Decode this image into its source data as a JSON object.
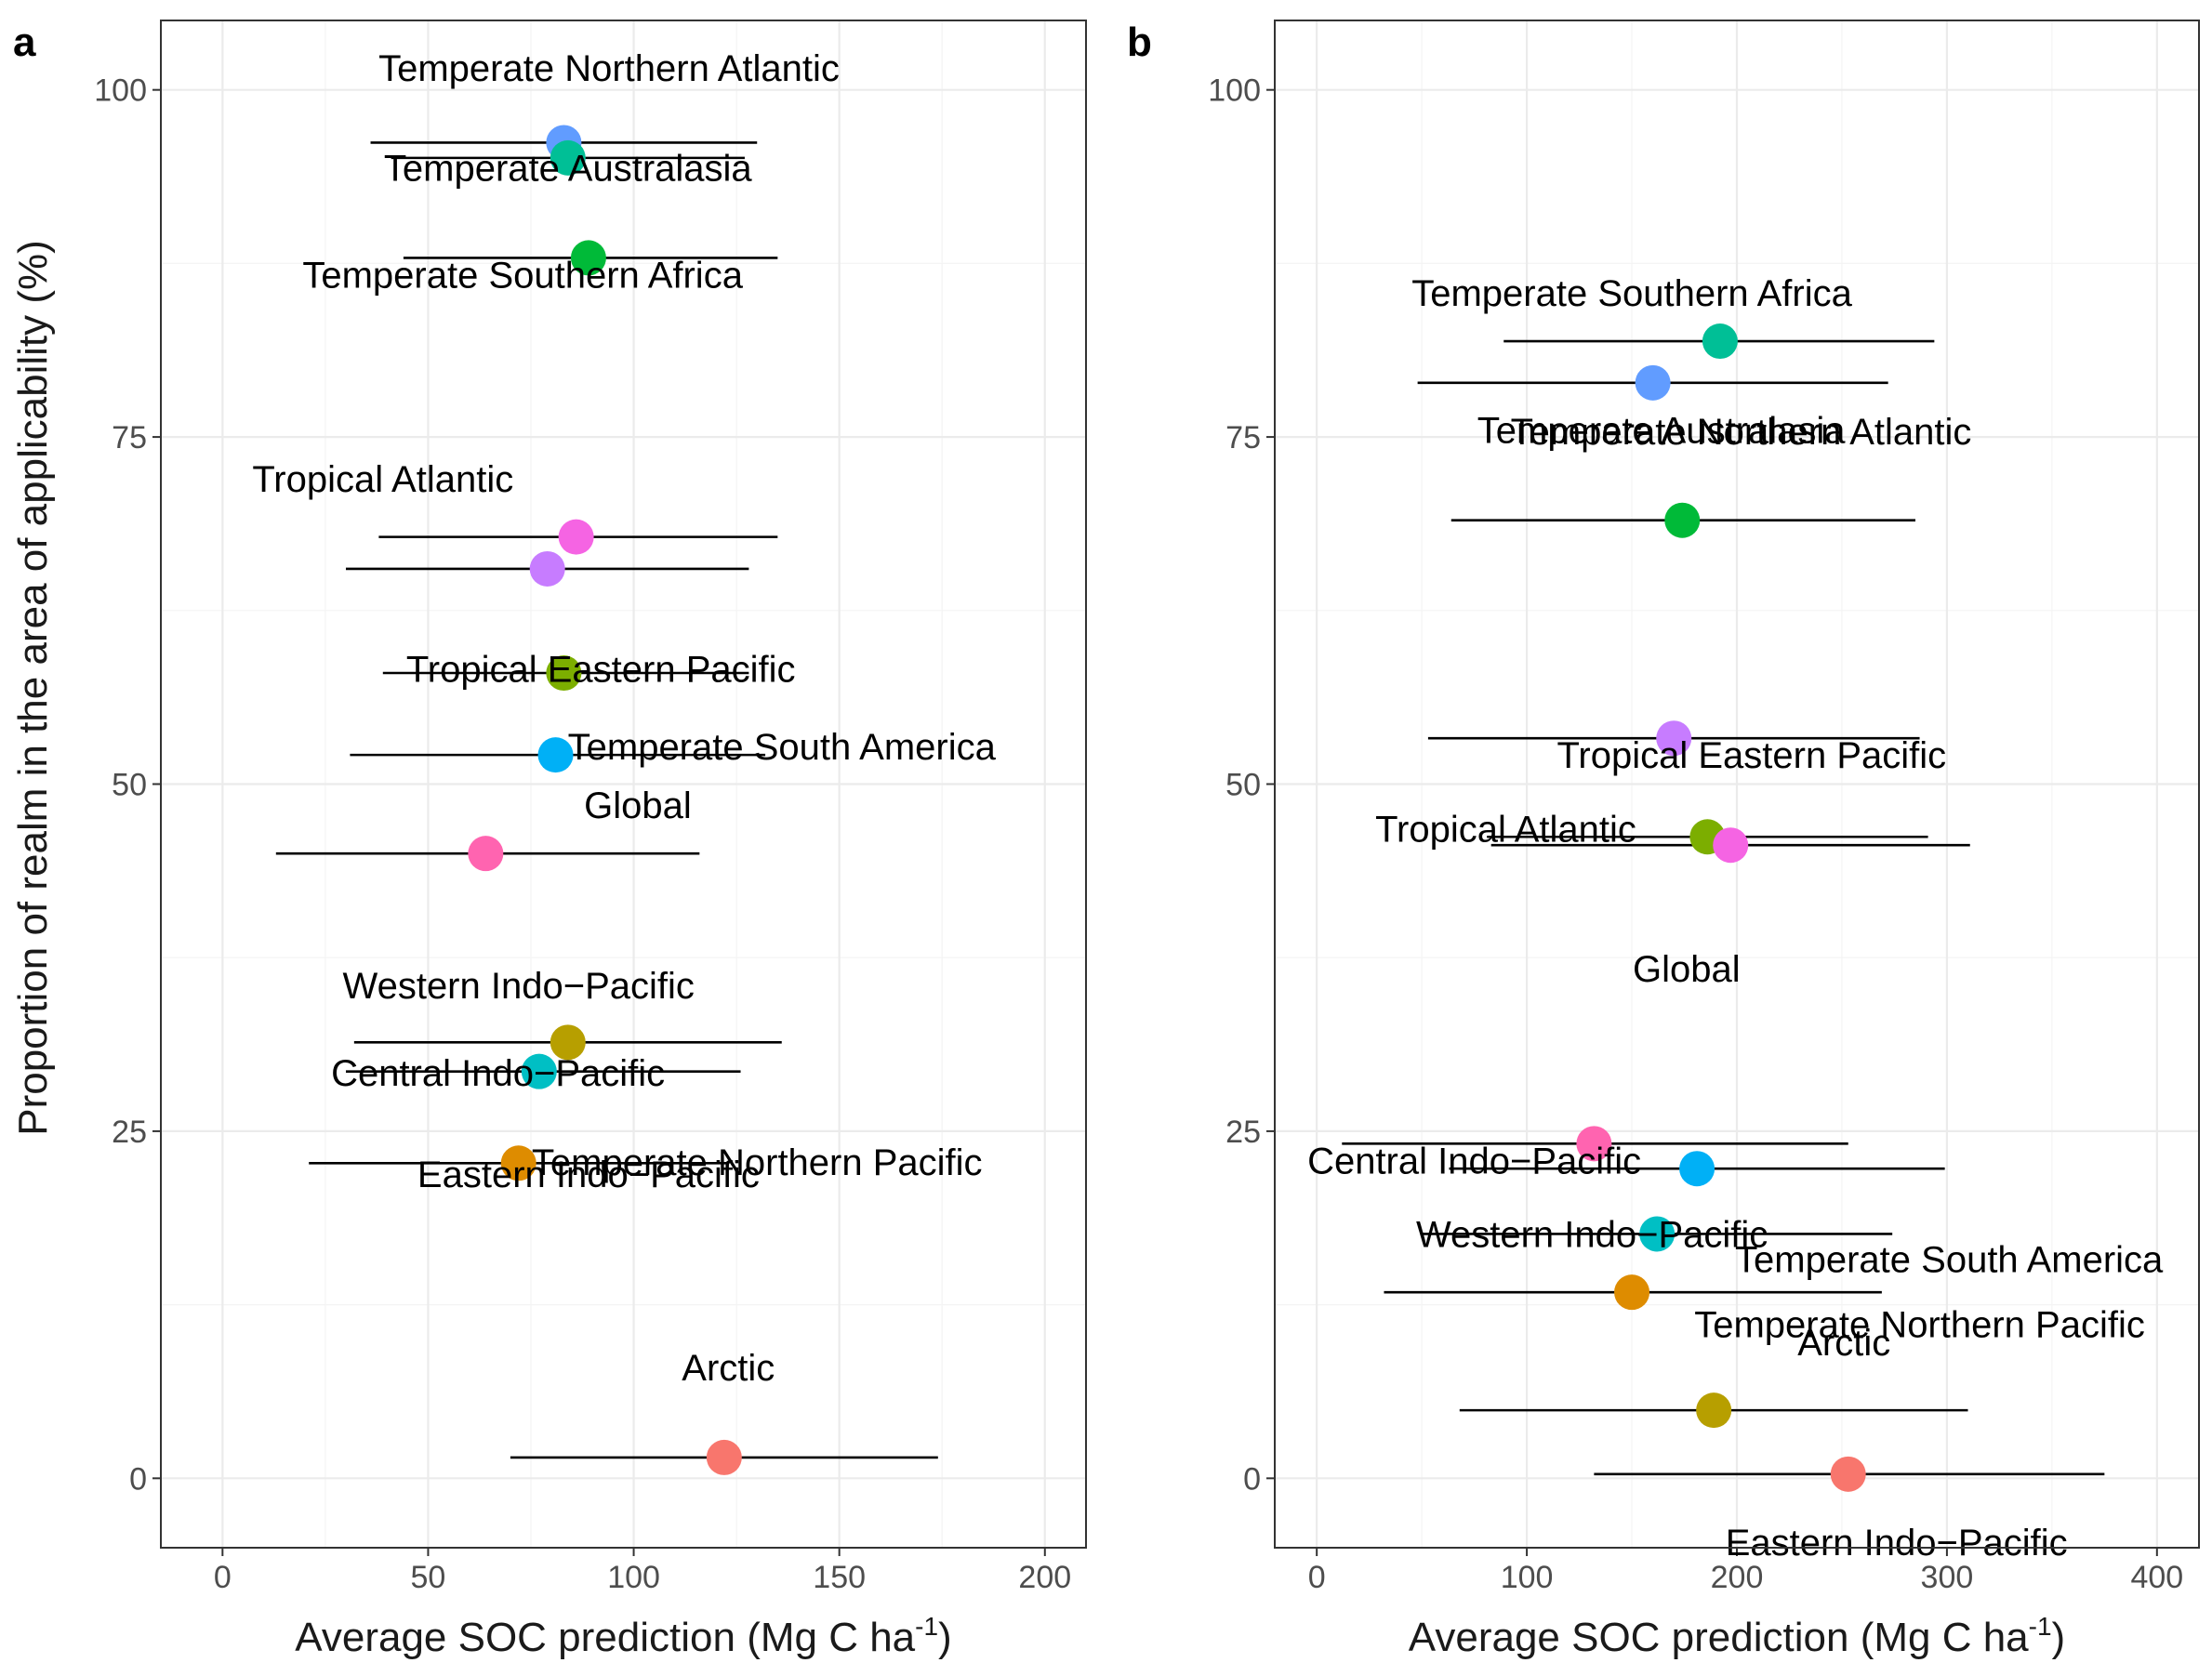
{
  "y_axis_title": "Proportion of realm in the area of applicability (%)",
  "chart_data": [
    {
      "panel": "a",
      "type": "scatter",
      "xlabel_main": "Average SOC prediction (Mg C ha",
      "xlabel_sup": "-1",
      "xlabel_end": ")",
      "xlim": [
        -15,
        210
      ],
      "ylim": [
        -5,
        105
      ],
      "xticks": [
        0,
        50,
        100,
        150,
        200
      ],
      "yticks": [
        0,
        25,
        50,
        75,
        100
      ],
      "grid": true,
      "points": [
        {
          "name": "Temperate Southern Africa",
          "x": 83,
          "xmin": 36,
          "xmax": 130,
          "y": 96.2,
          "color": "#619CFF",
          "label_dx": -10,
          "label_dy": -9.5
        },
        {
          "name": "Temperate Northern Atlantic",
          "x": 84,
          "xmin": 41,
          "xmax": 127,
          "y": 95.1,
          "color": "#00BF96",
          "label_dx": 10,
          "label_dy": 6.5
        },
        {
          "name": "Temperate Australasia",
          "x": 89,
          "xmin": 44,
          "xmax": 135,
          "y": 87.9,
          "color": "#00BA38",
          "label_dx": -5,
          "label_dy": 6.5
        },
        {
          "name": "Tropical Eastern Pacific",
          "x": 86,
          "xmin": 38,
          "xmax": 135,
          "y": 67.8,
          "color": "#F564E3",
          "label_dx": 6,
          "label_dy": -9.5
        },
        {
          "name": "Tropical Atlantic",
          "x": 79,
          "xmin": 30,
          "xmax": 128,
          "y": 65.5,
          "color": "#C77CFF",
          "label_dx": -40,
          "label_dy": 6.5
        },
        {
          "name": "Global",
          "x": 83,
          "xmin": 39,
          "xmax": 128,
          "y": 58.0,
          "color": "#7CAE00",
          "label_dx": 18,
          "label_dy": -9.5
        },
        {
          "name": "Temperate South America",
          "x": 81,
          "xmin": 31,
          "xmax": 132,
          "y": 52.1,
          "color": "#00B0F6",
          "label_dx": 55,
          "label_dy": 0.6
        },
        {
          "name": "Western Indo−Pacific",
          "x": 64,
          "xmin": 13,
          "xmax": 116,
          "y": 45.0,
          "color": "#FF64B0",
          "label_dx": 8,
          "label_dy": -9.5
        },
        {
          "name": "Eastern Indo−Pacific",
          "x": 84,
          "xmin": 32,
          "xmax": 136,
          "y": 31.4,
          "color": "#B79F00",
          "label_dx": 5,
          "label_dy": -9.5
        },
        {
          "name": "Temperate Northern Pacific",
          "x": 77,
          "xmin": 30,
          "xmax": 126,
          "y": 29.3,
          "color": "#00BFC4",
          "label_dx": 53,
          "label_dy": -6.5
        },
        {
          "name": "Central Indo−Pacific",
          "x": 72,
          "xmin": 21,
          "xmax": 123,
          "y": 22.7,
          "color": "#DE8C00",
          "label_dx": -5,
          "label_dy": 6.5
        },
        {
          "name": "Arctic",
          "x": 122,
          "xmin": 70,
          "xmax": 174,
          "y": 1.5,
          "color": "#F8766D",
          "label_dx": 1,
          "label_dy": 6.5
        }
      ]
    },
    {
      "panel": "b",
      "type": "scatter",
      "xlabel_main": "Average SOC prediction (Mg C ha",
      "xlabel_sup": "-1",
      "xlabel_end": ")",
      "xlim": [
        -20,
        420
      ],
      "ylim": [
        -5,
        105
      ],
      "xticks": [
        0,
        100,
        200,
        300,
        400
      ],
      "yticks": [
        0,
        25,
        50,
        75,
        100
      ],
      "grid": true,
      "points": [
        {
          "name": "Temperate Northern Atlantic",
          "x": 192,
          "xmin": 89,
          "xmax": 294,
          "y": 81.9,
          "color": "#00BF96",
          "label_dx": 10,
          "label_dy": -6.5
        },
        {
          "name": "Temperate Southern Africa",
          "x": 160,
          "xmin": 48,
          "xmax": 272,
          "y": 78.9,
          "color": "#619CFF",
          "label_dx": -10,
          "label_dy": 6.5
        },
        {
          "name": "Temperate Australasia",
          "x": 174,
          "xmin": 64,
          "xmax": 285,
          "y": 69.0,
          "color": "#00BA38",
          "label_dx": -10,
          "label_dy": 6.5
        },
        {
          "name": "Tropical Atlantic",
          "x": 170,
          "xmin": 53,
          "xmax": 287,
          "y": 53.3,
          "color": "#C77CFF",
          "label_dx": -80,
          "label_dy": -6.5
        },
        {
          "name": "Global",
          "x": 186,
          "xmin": 81,
          "xmax": 291,
          "y": 46.2,
          "color": "#7CAE00",
          "label_dx": -10,
          "label_dy": -9.5
        },
        {
          "name": "Tropical Eastern Pacific",
          "x": 197,
          "xmin": 83,
          "xmax": 311,
          "y": 45.6,
          "color": "#F564E3",
          "label_dx": 10,
          "label_dy": 6.5
        },
        {
          "name": "Western Indo−Pacific",
          "x": 132,
          "xmin": 12,
          "xmax": 253,
          "y": 24.1,
          "color": "#FF64B0",
          "label_dx": -1,
          "label_dy": -6.5
        },
        {
          "name": "Temperate South America",
          "x": 181,
          "xmin": 63,
          "xmax": 299,
          "y": 22.3,
          "color": "#00B0F6",
          "label_dx": 120,
          "label_dy": -6.5
        },
        {
          "name": "Temperate Northern Pacific",
          "x": 162,
          "xmin": 50,
          "xmax": 274,
          "y": 17.6,
          "color": "#00BFC4",
          "label_dx": 125,
          "label_dy": -6.5
        },
        {
          "name": "Central Indo−Pacific",
          "x": 150,
          "xmin": 32,
          "xmax": 269,
          "y": 13.4,
          "color": "#DE8C00",
          "label_dx": -75,
          "label_dy": 9.5
        },
        {
          "name": "Eastern Indo−Pacific",
          "x": 189,
          "xmin": 68,
          "xmax": 310,
          "y": 4.9,
          "color": "#B79F00",
          "label_dx": 87,
          "label_dy": -9.5
        },
        {
          "name": "Arctic",
          "x": 253,
          "xmin": 132,
          "xmax": 375,
          "y": 0.3,
          "color": "#F8766D",
          "label_dx": -2,
          "label_dy": 9.5
        }
      ]
    }
  ]
}
